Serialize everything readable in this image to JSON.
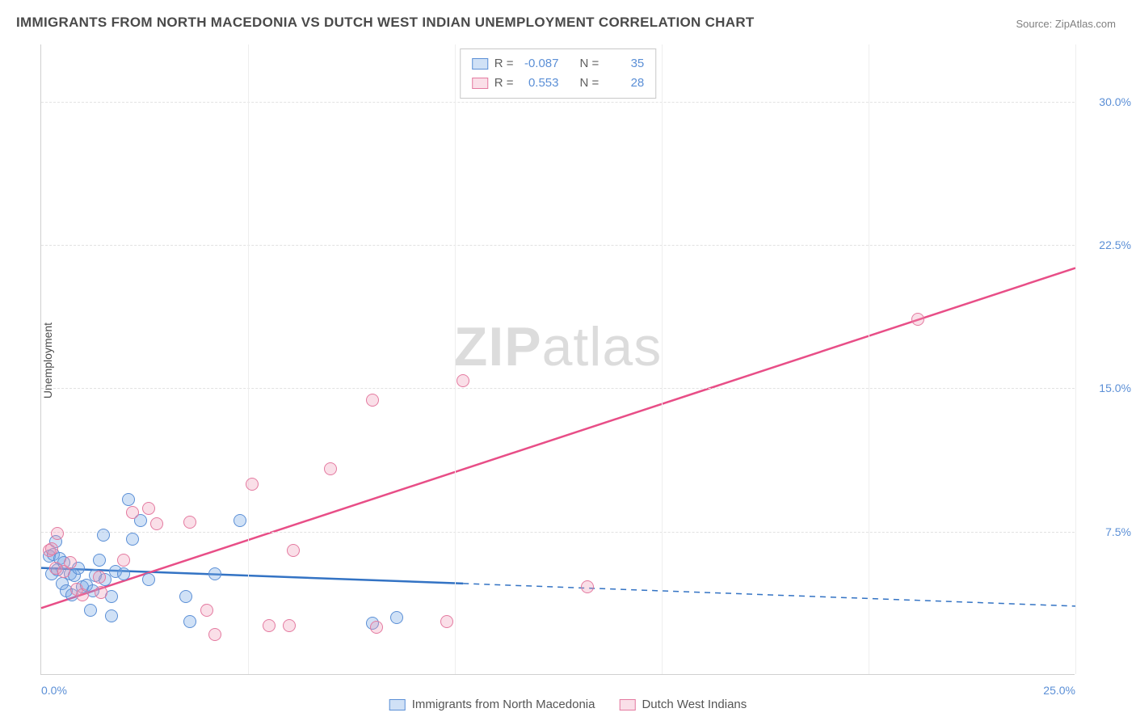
{
  "title": "IMMIGRANTS FROM NORTH MACEDONIA VS DUTCH WEST INDIAN UNEMPLOYMENT CORRELATION CHART",
  "source_label": "Source: ",
  "source_name": "ZipAtlas.com",
  "ylabel": "Unemployment",
  "watermark_a": "ZIP",
  "watermark_b": "atlas",
  "chart": {
    "type": "scatter",
    "xlim": [
      0,
      25
    ],
    "ylim": [
      0,
      33
    ],
    "yticks": [
      {
        "v": 7.5,
        "label": "7.5%"
      },
      {
        "v": 15.0,
        "label": "15.0%"
      },
      {
        "v": 22.5,
        "label": "22.5%"
      },
      {
        "v": 30.0,
        "label": "30.0%"
      }
    ],
    "xticks": [
      {
        "v": 0,
        "label": "0.0%",
        "align": "left"
      },
      {
        "v": 25,
        "label": "25.0%",
        "align": "right"
      }
    ],
    "vgrid": [
      5,
      10,
      15,
      20,
      25
    ],
    "background_color": "#ffffff",
    "grid_color": "#e2e2e2",
    "axis_color": "#d0d0d0",
    "tick_font_color": "#5b8fd6",
    "tick_fontsize": 14,
    "label_fontsize": 14,
    "title_fontsize": 17,
    "marker_radius": 8,
    "marker_stroke_width": 1.3,
    "line_width": 2.5,
    "series": [
      {
        "name": "Immigrants from North Macedonia",
        "key": "blue",
        "fill": "rgba(120,170,230,0.35)",
        "stroke": "#5b8fd6",
        "line_color": "#3373c4",
        "R": "-0.087",
        "N": "35",
        "line": {
          "x1": 0,
          "y1": 5.6,
          "x2": 25,
          "y2": 3.6,
          "solid_to_x": 10.2
        },
        "points": [
          {
            "x": 0.2,
            "y": 6.2
          },
          {
            "x": 0.25,
            "y": 5.3
          },
          {
            "x": 0.3,
            "y": 6.3
          },
          {
            "x": 0.35,
            "y": 7.0
          },
          {
            "x": 0.4,
            "y": 5.5
          },
          {
            "x": 0.45,
            "y": 6.1
          },
          {
            "x": 0.5,
            "y": 4.8
          },
          {
            "x": 0.55,
            "y": 5.9
          },
          {
            "x": 0.6,
            "y": 4.4
          },
          {
            "x": 0.7,
            "y": 5.3
          },
          {
            "x": 0.75,
            "y": 4.2
          },
          {
            "x": 0.8,
            "y": 5.2
          },
          {
            "x": 0.9,
            "y": 5.6
          },
          {
            "x": 1.0,
            "y": 4.6
          },
          {
            "x": 1.1,
            "y": 4.7
          },
          {
            "x": 1.2,
            "y": 3.4
          },
          {
            "x": 1.25,
            "y": 4.4
          },
          {
            "x": 1.3,
            "y": 5.2
          },
          {
            "x": 1.4,
            "y": 6.0
          },
          {
            "x": 1.5,
            "y": 7.3
          },
          {
            "x": 1.55,
            "y": 5.0
          },
          {
            "x": 1.7,
            "y": 4.1
          },
          {
            "x": 1.7,
            "y": 3.1
          },
          {
            "x": 1.8,
            "y": 5.4
          },
          {
            "x": 2.0,
            "y": 5.3
          },
          {
            "x": 2.1,
            "y": 9.2
          },
          {
            "x": 2.2,
            "y": 7.1
          },
          {
            "x": 2.4,
            "y": 8.1
          },
          {
            "x": 2.6,
            "y": 5.0
          },
          {
            "x": 3.5,
            "y": 4.1
          },
          {
            "x": 3.6,
            "y": 2.8
          },
          {
            "x": 4.2,
            "y": 5.3
          },
          {
            "x": 4.8,
            "y": 8.1
          },
          {
            "x": 8.0,
            "y": 2.7
          },
          {
            "x": 8.6,
            "y": 3.0
          }
        ]
      },
      {
        "name": "Dutch West Indians",
        "key": "pink",
        "fill": "rgba(240,150,180,0.30)",
        "stroke": "#e47aa0",
        "line_color": "#e84e87",
        "R": "0.553",
        "N": "28",
        "line": {
          "x1": 0,
          "y1": 3.5,
          "x2": 25,
          "y2": 21.3,
          "solid_to_x": 25
        },
        "points": [
          {
            "x": 0.2,
            "y": 6.5
          },
          {
            "x": 0.25,
            "y": 6.6
          },
          {
            "x": 0.35,
            "y": 5.6
          },
          {
            "x": 0.4,
            "y": 7.4
          },
          {
            "x": 0.55,
            "y": 5.4
          },
          {
            "x": 0.7,
            "y": 5.9
          },
          {
            "x": 0.85,
            "y": 4.5
          },
          {
            "x": 1.0,
            "y": 4.2
          },
          {
            "x": 1.4,
            "y": 5.1
          },
          {
            "x": 1.45,
            "y": 4.3
          },
          {
            "x": 2.0,
            "y": 6.0
          },
          {
            "x": 2.2,
            "y": 8.5
          },
          {
            "x": 2.6,
            "y": 8.7
          },
          {
            "x": 2.8,
            "y": 7.9
          },
          {
            "x": 3.6,
            "y": 8.0
          },
          {
            "x": 4.0,
            "y": 3.4
          },
          {
            "x": 4.2,
            "y": 2.1
          },
          {
            "x": 5.1,
            "y": 10.0
          },
          {
            "x": 5.5,
            "y": 2.6
          },
          {
            "x": 6.0,
            "y": 2.6
          },
          {
            "x": 6.1,
            "y": 6.5
          },
          {
            "x": 7.0,
            "y": 10.8
          },
          {
            "x": 8.0,
            "y": 14.4
          },
          {
            "x": 8.1,
            "y": 2.5
          },
          {
            "x": 9.8,
            "y": 2.8
          },
          {
            "x": 10.2,
            "y": 15.4
          },
          {
            "x": 13.2,
            "y": 4.6
          },
          {
            "x": 21.2,
            "y": 18.6
          }
        ]
      }
    ]
  },
  "legend_top": {
    "r_label": "R =",
    "n_label": "N ="
  },
  "legend_bottom_labels": [
    "Immigrants from North Macedonia",
    "Dutch West Indians"
  ]
}
